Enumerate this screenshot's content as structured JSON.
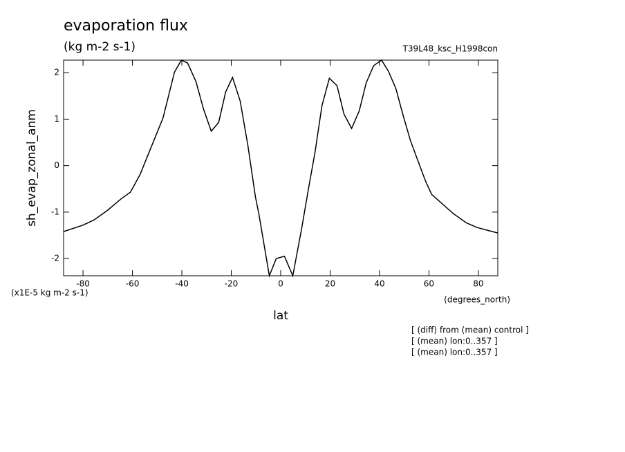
{
  "chart_data": {
    "type": "line",
    "title": "evaporation flux",
    "subtitle": "(kg m-2 s-1)",
    "run_label": "T39L48_ksc_H1998con",
    "y_label": "sh_evap_zonal_anm",
    "x_label": "lat",
    "x_units": "(degrees_north)",
    "y_units": "(x1E-5 kg m-2 s-1)",
    "notes": [
      "[ (diff) from (mean) control ]",
      "[ (mean) lon:0..357 ]",
      "[ (mean) lon:0..357 ]"
    ],
    "color": "#000000",
    "x": [
      -87.9,
      -80,
      -75.6,
      -70.3,
      -64.7,
      -60.8,
      -56.9,
      -52.1,
      -47.6,
      -43.0,
      -40.2,
      -37.7,
      -34.3,
      -31.2,
      -28.1,
      -25.1,
      -22.3,
      -19.5,
      -16.4,
      -13.3,
      -10.2,
      -8.8,
      -4.6,
      -1.8,
      1.5,
      4.9,
      8.5,
      11.4,
      13.9,
      16.7,
      19.7,
      22.8,
      25.6,
      28.7,
      31.8,
      34.6,
      37.6,
      40.8,
      43.6,
      46.6,
      49.4,
      52.5,
      55.5,
      58.6,
      61.1,
      64.5,
      69.8,
      75.1,
      79.4,
      83.6,
      87.9
    ],
    "values": [
      -1.42,
      -1.28,
      -1.17,
      -0.97,
      -0.72,
      -0.57,
      -0.19,
      0.44,
      1.03,
      2.01,
      2.27,
      2.21,
      1.81,
      1.21,
      0.74,
      0.93,
      1.58,
      1.9,
      1.39,
      0.44,
      -0.68,
      -1.05,
      -2.37,
      -2.0,
      -1.95,
      -2.37,
      -1.35,
      -0.45,
      0.29,
      1.29,
      1.88,
      1.72,
      1.11,
      0.8,
      1.18,
      1.78,
      2.15,
      2.27,
      2.03,
      1.66,
      1.11,
      0.54,
      0.11,
      -0.33,
      -0.62,
      -0.78,
      -1.03,
      -1.23,
      -1.33,
      -1.39,
      -1.45
    ],
    "xlim": [
      -87.86,
      87.86
    ],
    "ylim": [
      -2.37,
      2.27
    ],
    "xticks": [
      -80,
      -60,
      -40,
      -20,
      0,
      20,
      40,
      60,
      80
    ],
    "yticks": [
      -2,
      -1,
      0,
      1,
      2
    ]
  }
}
